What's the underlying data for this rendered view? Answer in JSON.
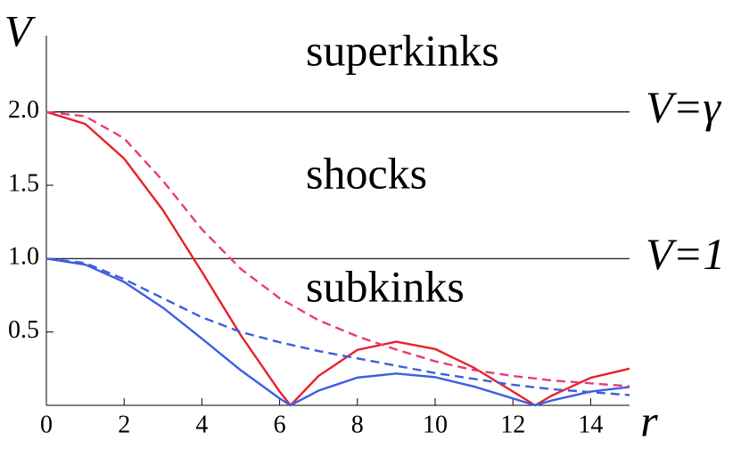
{
  "chart_data": {
    "type": "line",
    "x_label": "r",
    "y_label": "V",
    "xlim": [
      0,
      15
    ],
    "ylim": [
      0,
      2.52
    ],
    "xticks": [
      0,
      2,
      4,
      6,
      8,
      10,
      12,
      14
    ],
    "yticks": [
      0.5,
      {
        "value": 1,
        "label": "1.0"
      },
      1.5,
      {
        "value": 2,
        "label": "2.0"
      }
    ],
    "hlines": [
      {
        "value": 2,
        "label": "V=γ"
      },
      {
        "value": 1,
        "label": "V=1"
      }
    ],
    "annotations": [
      "superkinks",
      "shocks",
      "subkinks"
    ],
    "series": [
      {
        "color": "#e8212b",
        "dash": false,
        "x": [
          0,
          1,
          2,
          3,
          4,
          5,
          6,
          6.28,
          7,
          8,
          9,
          10,
          11,
          12,
          12.57,
          13,
          14,
          15
        ],
        "values": [
          2,
          1.918,
          1.682,
          1.33,
          0.91,
          0.478,
          0.094,
          0,
          0.2,
          0.378,
          0.434,
          0.384,
          0.256,
          0.094,
          0,
          0.066,
          0.188,
          0.25
        ]
      },
      {
        "color": "#3b5fe0",
        "dash": false,
        "x": [
          0,
          1,
          2,
          3,
          4,
          5,
          6,
          6.28,
          7,
          8,
          9,
          10,
          11,
          12,
          12.57,
          13,
          14,
          15
        ],
        "values": [
          1,
          0.959,
          0.841,
          0.665,
          0.455,
          0.239,
          0.047,
          0,
          0.1,
          0.189,
          0.217,
          0.192,
          0.128,
          0.047,
          0,
          0.033,
          0.094,
          0.125
        ]
      },
      {
        "color": "#ea3a78",
        "dash": true,
        "x": [
          0,
          1,
          2,
          3,
          4,
          5,
          6,
          7,
          8,
          9,
          10,
          11,
          12,
          13,
          14,
          15
        ],
        "values": [
          2,
          1.97,
          1.82,
          1.53,
          1.2,
          0.93,
          0.73,
          0.58,
          0.47,
          0.38,
          0.3,
          0.24,
          0.2,
          0.17,
          0.15,
          0.13
        ]
      },
      {
        "color": "#3b5fe0",
        "dash": true,
        "x": [
          0,
          1,
          2,
          3,
          4,
          5,
          6,
          7,
          8,
          9,
          10,
          11,
          12,
          13,
          14,
          15
        ],
        "values": [
          1,
          0.97,
          0.86,
          0.73,
          0.6,
          0.5,
          0.43,
          0.37,
          0.32,
          0.27,
          0.22,
          0.18,
          0.14,
          0.11,
          0.09,
          0.07
        ]
      }
    ]
  }
}
